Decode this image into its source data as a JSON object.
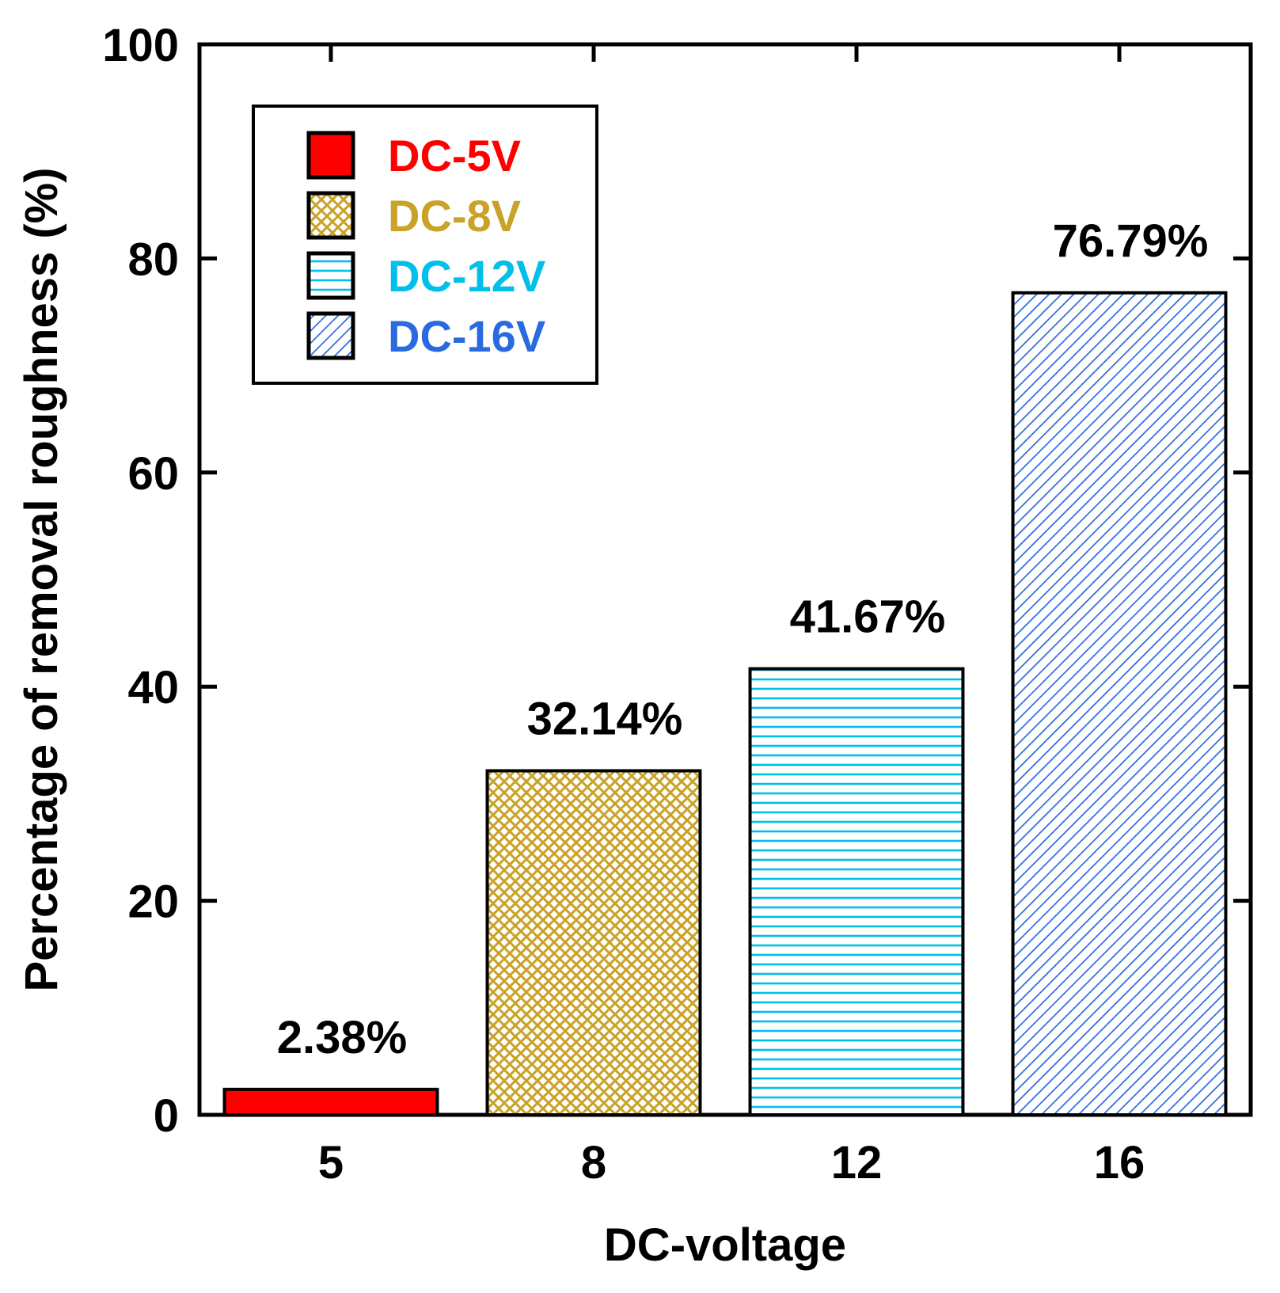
{
  "chart_data": {
    "type": "bar",
    "title": "",
    "xlabel": "DC-voltage",
    "ylabel": "Percentage of removal roughness (%)",
    "categories": [
      "5",
      "8",
      "12",
      "16"
    ],
    "values": [
      2.38,
      32.14,
      41.67,
      76.79
    ],
    "data_labels": [
      "2.38%",
      "32.14%",
      "41.67%",
      "76.79%"
    ],
    "ylim": [
      0,
      100
    ],
    "yticks": [
      0,
      20,
      40,
      60,
      80,
      100
    ],
    "ytick_labels": [
      "0",
      "20",
      "40",
      "60",
      "80",
      "100"
    ],
    "grid": false,
    "legend_position": "top-left",
    "series": [
      {
        "name": "DC-5V",
        "category": "5",
        "value": 2.38,
        "color": "#ff0000",
        "pattern": "solid"
      },
      {
        "name": "DC-8V",
        "category": "8",
        "value": 32.14,
        "color": "#c9a227",
        "pattern": "crosshatch"
      },
      {
        "name": "DC-12V",
        "category": "12",
        "value": 41.67,
        "color": "#00c0ea",
        "pattern": "horizontal"
      },
      {
        "name": "DC-16V",
        "category": "16",
        "value": 76.79,
        "color": "#2a6ae0",
        "pattern": "diagonal"
      }
    ]
  }
}
